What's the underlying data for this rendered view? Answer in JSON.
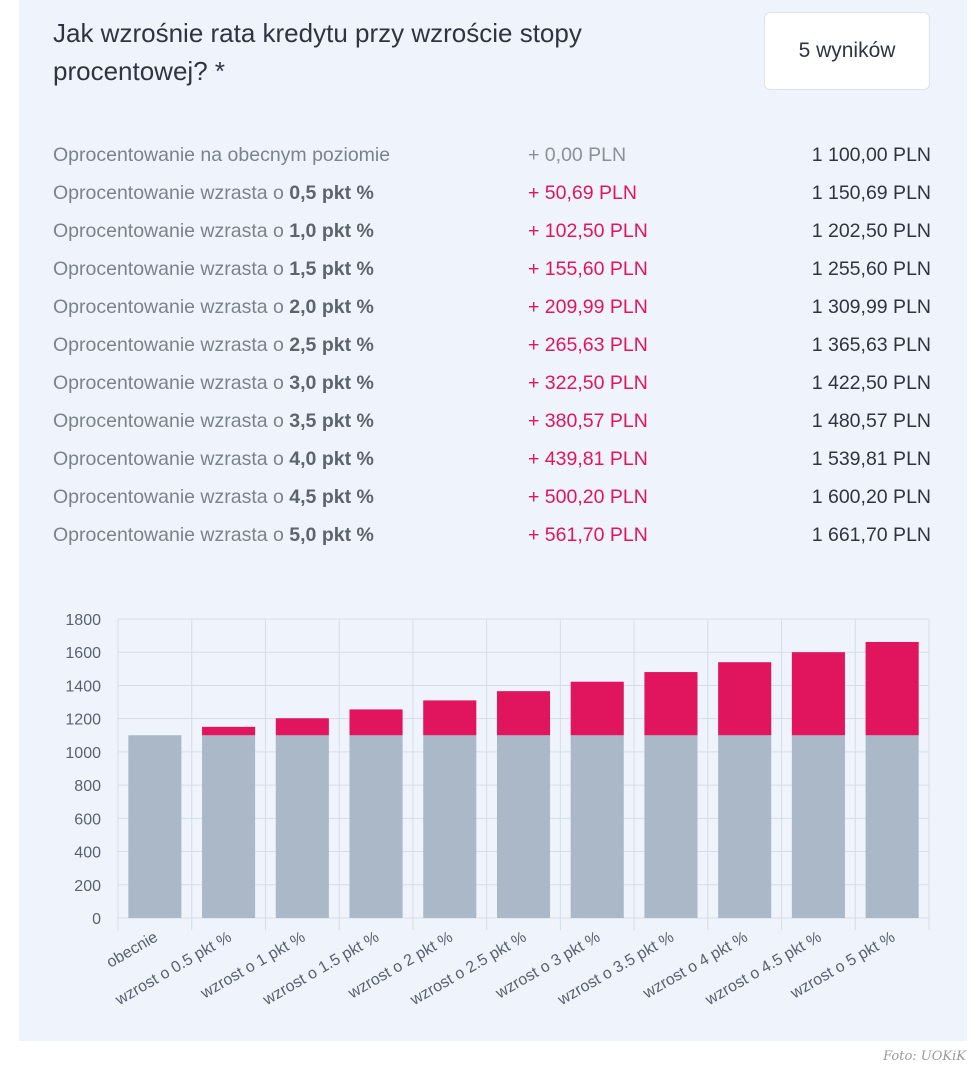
{
  "header": {
    "title": "Jak wzrośnie rata kredytu przy wzroście stopy procentowej? *",
    "results_button": "5 wyników"
  },
  "rows": [
    {
      "label_prefix": "Oprocentowanie na obecnym poziomie",
      "label_value": "",
      "delta": "+ 0,00 PLN",
      "total": "1 100,00 PLN"
    },
    {
      "label_prefix": "Oprocentowanie wzrasta o ",
      "label_value": "0,5 pkt %",
      "delta": "+ 50,69 PLN",
      "total": "1 150,69 PLN"
    },
    {
      "label_prefix": "Oprocentowanie wzrasta o ",
      "label_value": "1,0 pkt %",
      "delta": "+ 102,50 PLN",
      "total": "1 202,50 PLN"
    },
    {
      "label_prefix": "Oprocentowanie wzrasta o ",
      "label_value": "1,5 pkt %",
      "delta": "+ 155,60 PLN",
      "total": "1 255,60 PLN"
    },
    {
      "label_prefix": "Oprocentowanie wzrasta o ",
      "label_value": "2,0 pkt %",
      "delta": "+ 209,99 PLN",
      "total": "1 309,99 PLN"
    },
    {
      "label_prefix": "Oprocentowanie wzrasta o ",
      "label_value": "2,5 pkt %",
      "delta": "+ 265,63 PLN",
      "total": "1 365,63 PLN"
    },
    {
      "label_prefix": "Oprocentowanie wzrasta o ",
      "label_value": "3,0 pkt %",
      "delta": "+ 322,50 PLN",
      "total": "1 422,50 PLN"
    },
    {
      "label_prefix": "Oprocentowanie wzrasta o ",
      "label_value": "3,5 pkt %",
      "delta": "+ 380,57 PLN",
      "total": "1 480,57 PLN"
    },
    {
      "label_prefix": "Oprocentowanie wzrasta o ",
      "label_value": "4,0 pkt %",
      "delta": "+ 439,81 PLN",
      "total": "1 539,81 PLN"
    },
    {
      "label_prefix": "Oprocentowanie wzrasta o ",
      "label_value": "4,5 pkt %",
      "delta": "+ 500,20 PLN",
      "total": "1 600,20 PLN"
    },
    {
      "label_prefix": "Oprocentowanie wzrasta o ",
      "label_value": "5,0 pkt %",
      "delta": "+ 561,70 PLN",
      "total": "1 661,70 PLN"
    }
  ],
  "chart_data": {
    "type": "bar",
    "stacked": true,
    "categories": [
      "obecnie",
      "wzrost o 0.5 pkt %",
      "wzrost o 1 pkt %",
      "wzrost o 1.5 pkt %",
      "wzrost o 2 pkt %",
      "wzrost o 2.5 pkt %",
      "wzrost o 3 pkt %",
      "wzrost o 3.5 pkt %",
      "wzrost o 4 pkt %",
      "wzrost o 4.5 pkt %",
      "wzrost o 5 pkt %"
    ],
    "series": [
      {
        "values": [
          1100,
          1100,
          1100,
          1100,
          1100,
          1100,
          1100,
          1100,
          1100,
          1100,
          1100
        ],
        "color": "#aab8c8"
      },
      {
        "values": [
          0,
          50.69,
          102.5,
          155.6,
          209.99,
          265.63,
          322.5,
          380.57,
          439.81,
          500.2,
          561.7
        ],
        "color": "#e0155e"
      }
    ],
    "yticks": [
      0,
      200,
      400,
      600,
      800,
      1000,
      1200,
      1400,
      1600,
      1800
    ],
    "ylim": [
      0,
      1800
    ],
    "grid": true,
    "legend": "none"
  },
  "credit": "Foto: UOKiK"
}
